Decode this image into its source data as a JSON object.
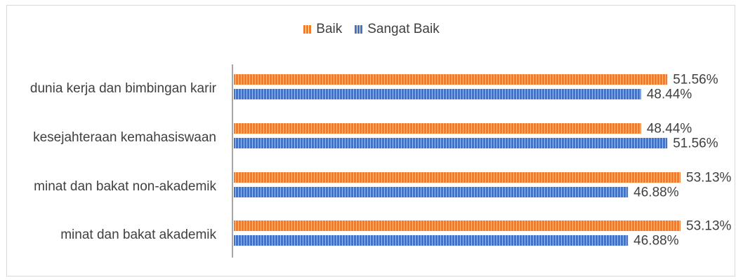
{
  "chart_data": {
    "type": "bar",
    "orientation": "horizontal",
    "categories": [
      "dunia kerja dan bimbingan karir",
      "kesejahteraan kemahasiswaan",
      "minat dan bakat  non-akademik",
      "minat dan bakat akademik"
    ],
    "series": [
      {
        "name": "Baik",
        "color": "#ED7D31",
        "values": [
          51.56,
          48.44,
          53.13,
          53.13
        ],
        "labels": [
          "51.56%",
          "48.44%",
          "53.13%",
          "53.13%"
        ]
      },
      {
        "name": "Sangat Baik",
        "color": "#4472C4",
        "values": [
          48.44,
          51.56,
          46.88,
          46.88
        ],
        "labels": [
          "48.44%",
          "51.56%",
          "46.88%",
          "46.88%"
        ]
      }
    ],
    "legend_position": "top",
    "grid": false
  }
}
